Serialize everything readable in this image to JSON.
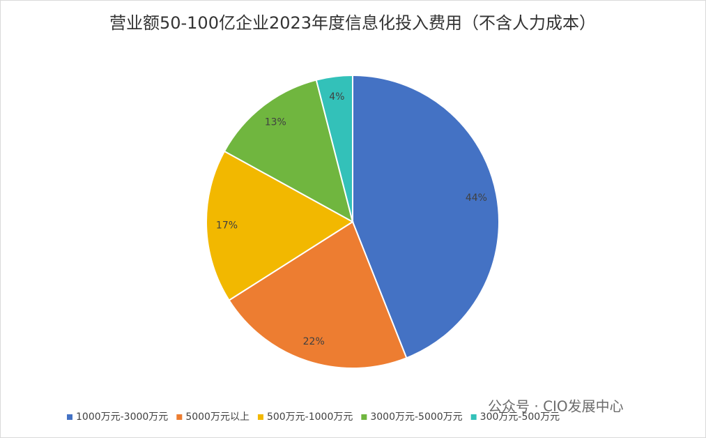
{
  "chart_data": {
    "type": "pie",
    "title": "营业额50-100亿企业2023年度信息化投入费用（不含人力成本）",
    "categories": [
      "1000万元-3000万元",
      "5000万元以上",
      "500万元-1000万元",
      "3000万元-5000万元",
      "300万元-500万元"
    ],
    "values": [
      44,
      22,
      17,
      13,
      4
    ],
    "value_labels": [
      "44%",
      "22%",
      "17%",
      "13%",
      "4%"
    ],
    "colors": [
      "#4472c4",
      "#ed7d31",
      "#f2b800",
      "#70b63f",
      "#33c1b9"
    ],
    "legend": "bottom",
    "watermark": "公众号 · CIO发展中心"
  }
}
